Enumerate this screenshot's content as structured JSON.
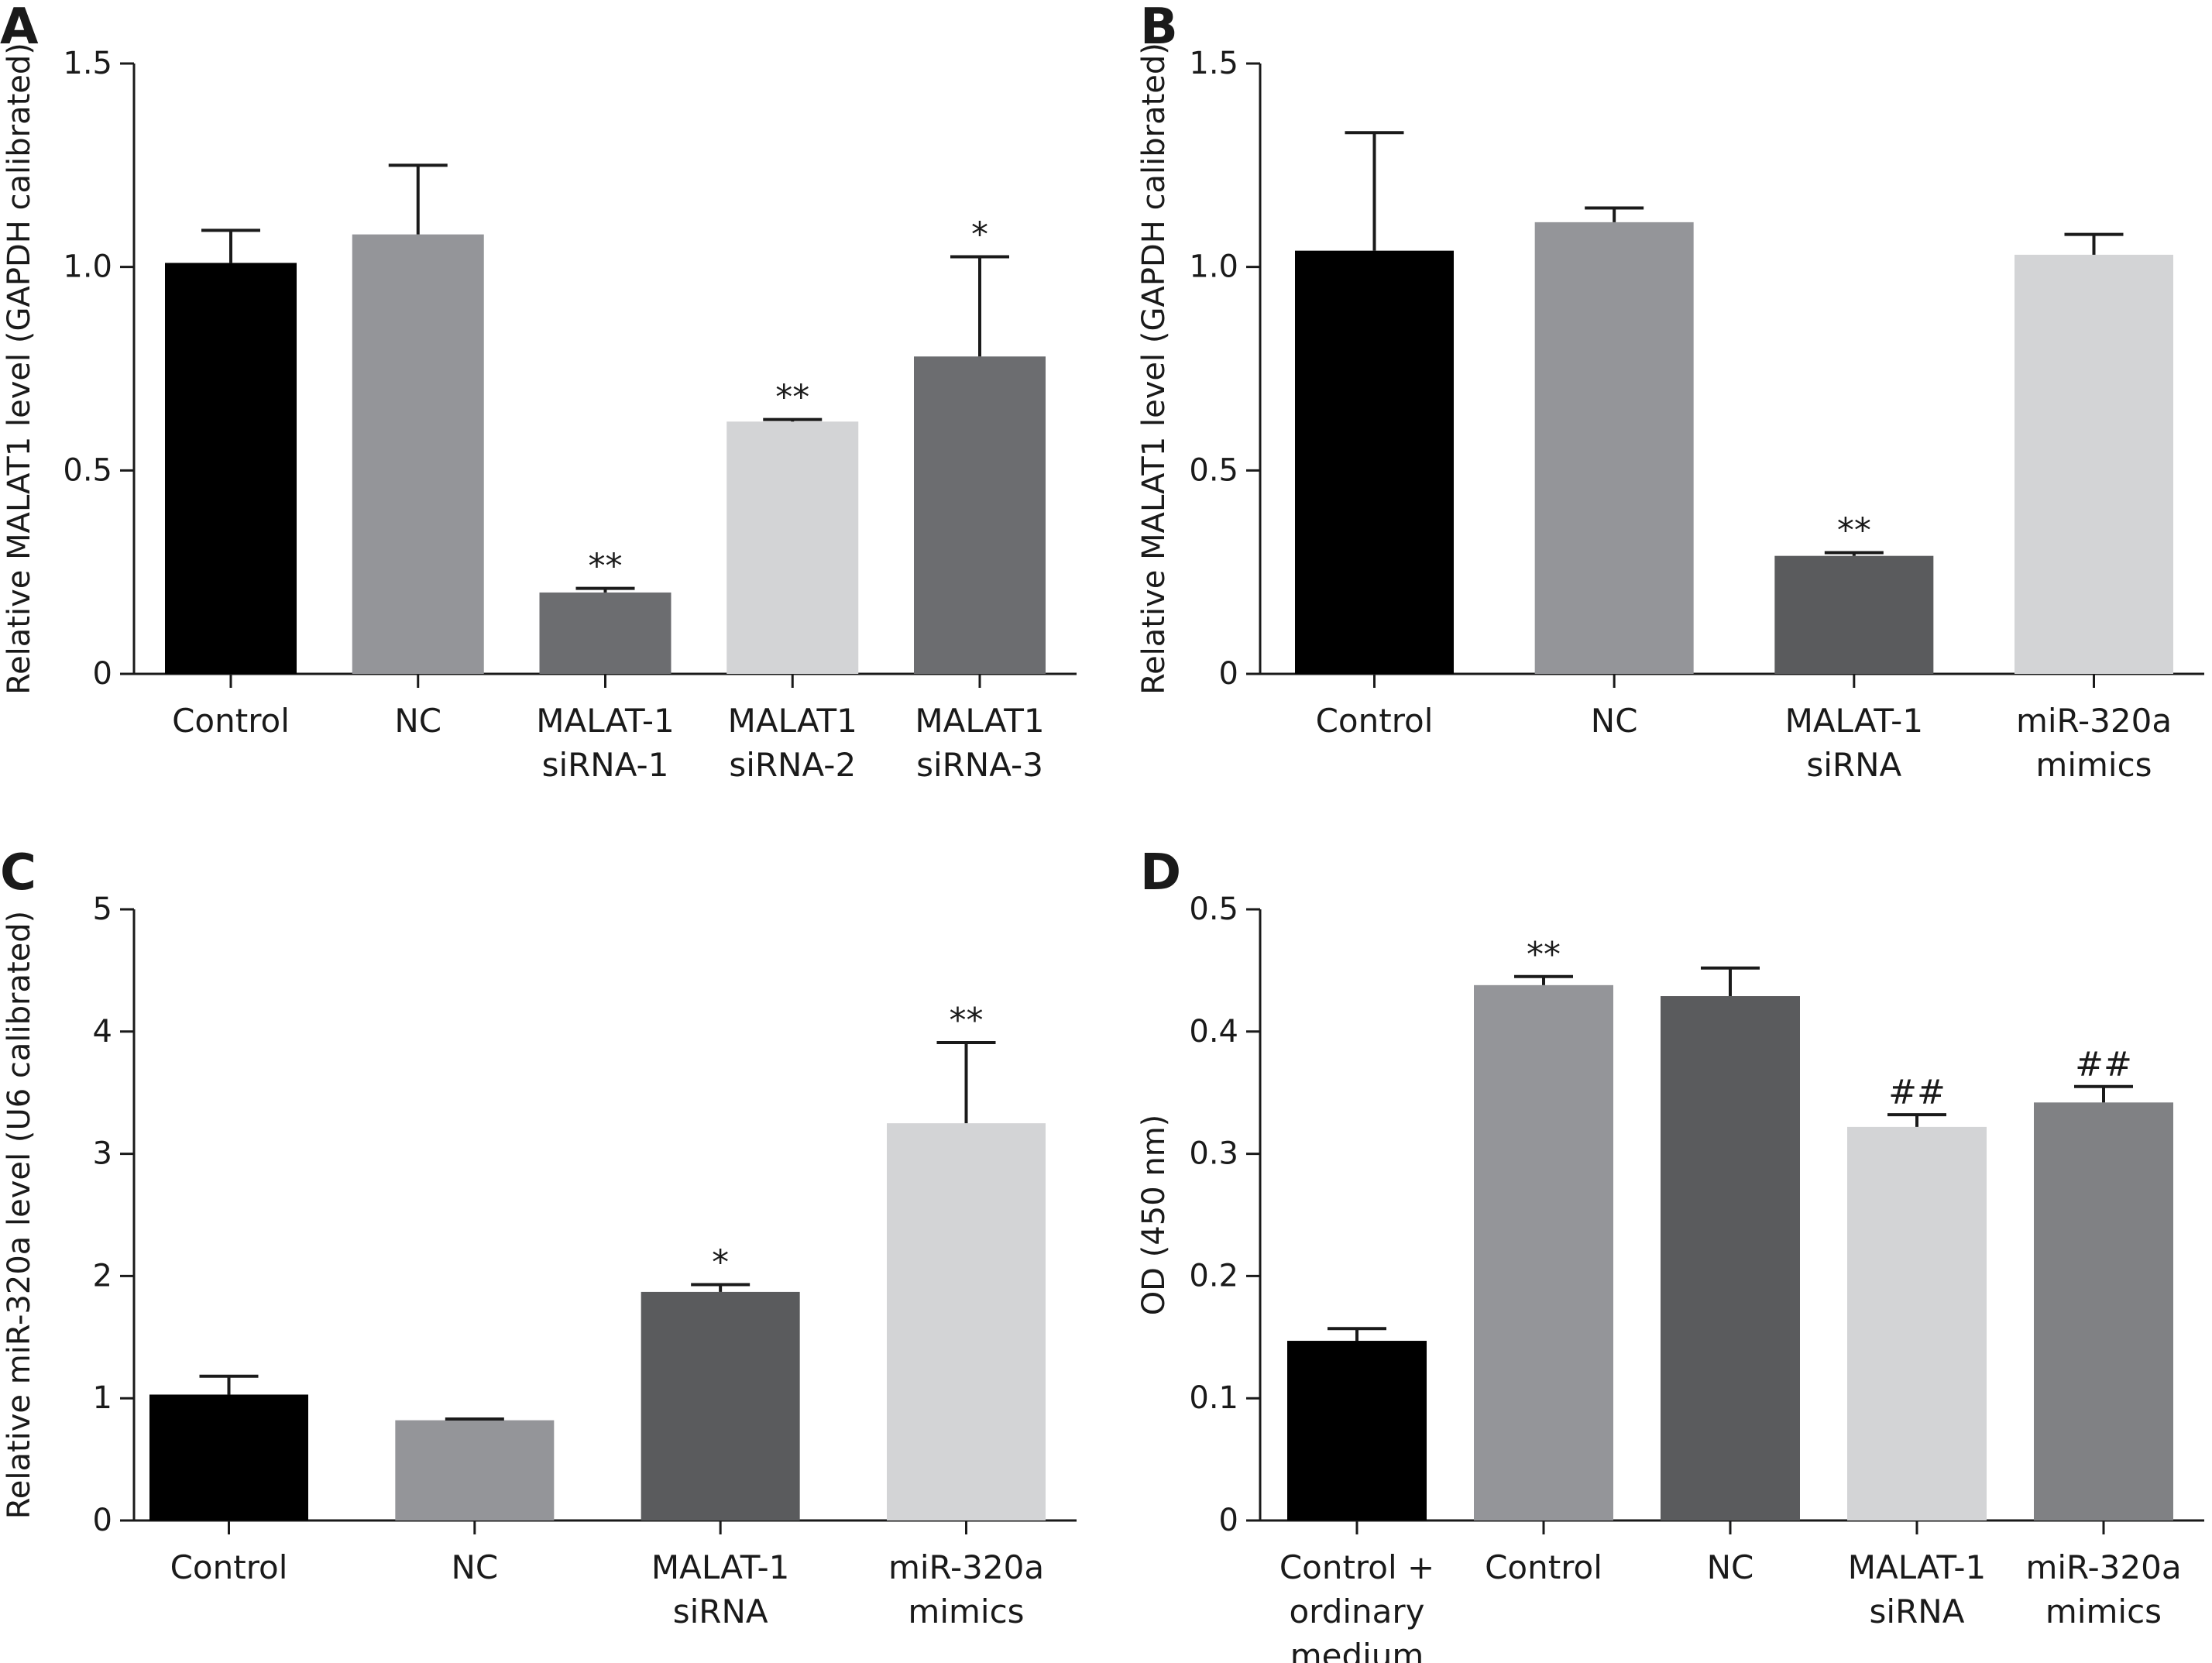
{
  "chart_data": [
    {
      "panel": "A",
      "type": "bar",
      "ylabel": "Relative MALAT1 level (GAPDH calibrated)",
      "ylim": [
        0,
        1.5
      ],
      "yticks": [
        "0",
        "0.5",
        "1.0",
        "1.5"
      ],
      "categories": [
        [
          "Control"
        ],
        [
          "NC"
        ],
        [
          "MALAT-1",
          "siRNA-1"
        ],
        [
          "MALAT1",
          "siRNA-2"
        ],
        [
          "MALAT1",
          "siRNA-3"
        ]
      ],
      "values": [
        1.01,
        1.08,
        0.2,
        0.62,
        0.78
      ],
      "errors": [
        0.08,
        0.17,
        0.01,
        0.005,
        0.245
      ],
      "significance": [
        "",
        "",
        "**",
        "**",
        "*"
      ],
      "colors": [
        "#000000",
        "#949599",
        "#6c6d70",
        "#d3d4d6",
        "#6c6d70"
      ]
    },
    {
      "panel": "B",
      "type": "bar",
      "ylabel": "Relative MALAT1 level (GAPDH calibrated)",
      "ylim": [
        0,
        1.5
      ],
      "yticks": [
        "0",
        "0.5",
        "1.0",
        "1.5"
      ],
      "categories": [
        [
          "Control"
        ],
        [
          "NC"
        ],
        [
          "MALAT-1",
          "siRNA"
        ],
        [
          "miR-320a",
          "mimics"
        ]
      ],
      "values": [
        1.04,
        1.11,
        0.29,
        1.03
      ],
      "errors": [
        0.29,
        0.035,
        0.008,
        0.05
      ],
      "significance": [
        "",
        "",
        "**",
        ""
      ],
      "colors": [
        "#000000",
        "#949599",
        "#5a5b5d",
        "#d3d4d6"
      ]
    },
    {
      "panel": "C",
      "type": "bar",
      "ylabel": "Relative miR-320a level (U6 calibrated)",
      "ylim": [
        0,
        5
      ],
      "yticks": [
        "0",
        "1",
        "2",
        "3",
        "4",
        "5"
      ],
      "categories": [
        [
          "Control"
        ],
        [
          "NC"
        ],
        [
          "MALAT-1",
          "siRNA"
        ],
        [
          "miR-320a",
          "mimics"
        ]
      ],
      "values": [
        1.03,
        0.82,
        1.87,
        3.25
      ],
      "errors": [
        0.15,
        0.01,
        0.06,
        0.66
      ],
      "significance": [
        "",
        "",
        "*",
        "**"
      ],
      "colors": [
        "#000000",
        "#949599",
        "#5a5b5d",
        "#d3d4d6"
      ]
    },
    {
      "panel": "D",
      "type": "bar",
      "ylabel": "OD (450 nm)",
      "ylim": [
        0,
        0.5
      ],
      "yticks": [
        "0",
        "0.1",
        "0.2",
        "0.3",
        "0.4",
        "0.5"
      ],
      "categories": [
        [
          "Control +",
          "ordinary",
          "medium"
        ],
        [
          "Control"
        ],
        [
          "NC"
        ],
        [
          "MALAT-1",
          "siRNA"
        ],
        [
          "miR-320a",
          "mimics"
        ]
      ],
      "values": [
        0.147,
        0.438,
        0.429,
        0.322,
        0.342
      ],
      "errors": [
        0.01,
        0.007,
        0.023,
        0.01,
        0.013
      ],
      "significance": [
        "",
        "**",
        "",
        "##",
        "##"
      ],
      "colors": [
        "#000000",
        "#949599",
        "#5a5b5d",
        "#d3d4d6",
        "#808184"
      ]
    }
  ]
}
